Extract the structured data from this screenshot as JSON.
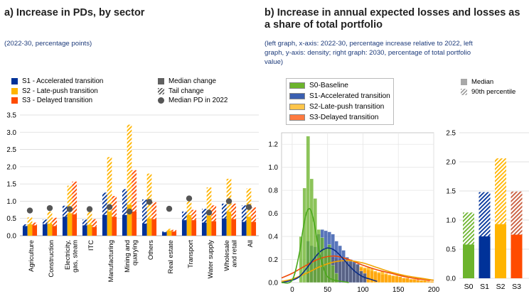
{
  "panel_a": {
    "title": "a) Increase in PDs, by sector",
    "subtitle": "(2022-30, percentage points)",
    "legend": {
      "s1": "S1 - Accelerated transition",
      "s2": "S2 - Late-push transition",
      "s3": "S3 - Delayed transition",
      "median": "Median change",
      "tail": "Tail change",
      "dot": "Median PD in 2022"
    }
  },
  "panel_b": {
    "title_line1": "b) Increase in annual expected losses and losses as",
    "title_line2": "a share of total portfolio",
    "subtitle_line1": "(left graph, x-axis: 2022-30, percentage increase relative to 2022, left",
    "subtitle_line2": "graph, y-axis: density; right graph: 2030, percentage of total portfolio",
    "subtitle_line3": "value)",
    "legend": {
      "s0": "S0-Baseline",
      "s1": "S1-Accelerated transition",
      "s2": "S2-Late-push transition",
      "s3": "S3-Delayed transition",
      "median": "Median",
      "p90": "90th percentile"
    }
  },
  "colors": {
    "s0": "#6cb42c",
    "s1": "#003299",
    "s2": "#ffb400",
    "s3": "#ff4b00",
    "dot": "#555555",
    "grid": "#d9d9d9"
  },
  "chart_data": [
    {
      "type": "bar",
      "categories": [
        "Agriculture",
        "Construction",
        "Electricity, gas, steam",
        "ITC",
        "Manufacturing",
        "Mining and quarying",
        "Others",
        "Real estate",
        "Transport",
        "Water supply",
        "Wholesale and retail",
        "All"
      ],
      "category_lines": [
        [
          "Agriculture"
        ],
        [
          "Construction"
        ],
        [
          "Electricity,",
          "gas, steam"
        ],
        [
          "ITC"
        ],
        [
          "Manufacturing"
        ],
        [
          "Mining and",
          "quarying"
        ],
        [
          "Others"
        ],
        [
          "Real estate"
        ],
        [
          "Transport"
        ],
        [
          "Water supply"
        ],
        [
          "Wholesale",
          "and retail"
        ],
        [
          "All"
        ]
      ],
      "ylim": [
        0,
        3.5
      ],
      "yticks": [
        "0.0",
        "0.5",
        "1.0",
        "1.5",
        "2.0",
        "2.5",
        "3.0",
        "3.5"
      ],
      "series": [
        {
          "name": "S1 - Accelerated transition",
          "median": [
            0.28,
            0.33,
            0.55,
            0.3,
            0.6,
            0.6,
            0.35,
            0.1,
            0.45,
            0.38,
            0.5,
            0.4
          ],
          "tail": [
            0.33,
            0.47,
            0.87,
            0.47,
            1.25,
            1.35,
            1.05,
            0.12,
            0.7,
            0.78,
            0.93,
            0.88
          ]
        },
        {
          "name": "S2 - Late-push transition",
          "median": [
            0.33,
            0.35,
            0.65,
            0.32,
            0.7,
            0.9,
            0.5,
            0.15,
            0.6,
            0.58,
            0.7,
            0.55
          ],
          "tail": [
            0.53,
            0.7,
            1.45,
            0.7,
            2.28,
            3.22,
            1.8,
            0.2,
            1.0,
            1.4,
            1.65,
            1.37
          ]
        },
        {
          "name": "S3 - Delayed transition",
          "median": [
            0.3,
            0.28,
            0.62,
            0.25,
            0.55,
            0.7,
            0.48,
            0.12,
            0.45,
            0.42,
            0.48,
            0.4
          ],
          "tail": [
            0.38,
            0.52,
            1.57,
            0.48,
            1.15,
            1.9,
            0.97,
            0.17,
            0.75,
            0.88,
            0.93,
            0.82
          ]
        }
      ],
      "median_pd_2022": [
        0.73,
        0.8,
        0.77,
        0.77,
        0.83,
        0.7,
        0.98,
        0.78,
        1.08,
        0.67,
        1.0,
        0.83
      ]
    },
    {
      "type": "histogram",
      "xlim": [
        -15,
        200
      ],
      "xticks": [
        0,
        50,
        100,
        150,
        200
      ],
      "ylim": [
        0,
        1.3
      ],
      "yticks": [
        "0.0",
        "0.2",
        "0.4",
        "0.6",
        "0.8",
        "1.0",
        "1.2"
      ],
      "bin_width": 5,
      "series": [
        {
          "name": "S0-Baseline",
          "bin_starts": [
            10,
            15,
            20,
            25,
            30,
            35,
            40,
            45,
            50,
            55,
            60
          ],
          "density": [
            0.4,
            0.82,
            1.27,
            0.9,
            0.73,
            0.46,
            0.39,
            0.3,
            0.33,
            0.15,
            0.08
          ],
          "kde_x": [
            -15,
            0,
            10,
            15,
            20,
            25,
            30,
            35,
            40,
            45,
            50,
            60,
            70,
            80
          ],
          "kde_y": [
            0.0,
            0.02,
            0.25,
            0.45,
            0.6,
            0.64,
            0.55,
            0.38,
            0.22,
            0.12,
            0.05,
            0.02,
            0.01,
            0.0
          ]
        },
        {
          "name": "S1-Accelerated transition",
          "bin_starts": [
            20,
            25,
            30,
            35,
            40,
            45,
            50,
            55,
            60,
            65,
            70,
            75,
            80,
            85,
            90,
            95,
            100
          ],
          "density": [
            0.36,
            0.32,
            0.31,
            0.42,
            0.46,
            0.45,
            0.44,
            0.42,
            0.36,
            0.32,
            0.28,
            0.22,
            0.2,
            0.18,
            0.16,
            0.1,
            0.08
          ],
          "kde_x": [
            -15,
            0,
            10,
            20,
            30,
            40,
            50,
            60,
            70,
            80,
            90,
            100,
            110,
            120
          ],
          "kde_y": [
            0.0,
            0.02,
            0.05,
            0.12,
            0.2,
            0.27,
            0.3,
            0.28,
            0.22,
            0.15,
            0.09,
            0.05,
            0.03,
            0.01
          ]
        },
        {
          "name": "S2-Late-push transition",
          "bin_starts": [
            40,
            45,
            50,
            55,
            60,
            65,
            70,
            75,
            80,
            85,
            90,
            95,
            100,
            105,
            110,
            115,
            120,
            125,
            130,
            135,
            140,
            145,
            150,
            155,
            160,
            165,
            170,
            175,
            180,
            185,
            190,
            195
          ],
          "density": [
            0.22,
            0.2,
            0.21,
            0.2,
            0.2,
            0.19,
            0.18,
            0.18,
            0.18,
            0.17,
            0.16,
            0.14,
            0.13,
            0.13,
            0.12,
            0.1,
            0.09,
            0.1,
            0.08,
            0.07,
            0.06,
            0.06,
            0.05,
            0.04,
            0.04,
            0.03,
            0.03,
            0.02,
            0.02,
            0.02,
            0.01,
            0.01
          ],
          "kde_x": [
            -15,
            0,
            20,
            40,
            60,
            80,
            100,
            120,
            140,
            160,
            180,
            200
          ],
          "kde_y": [
            0.01,
            0.03,
            0.08,
            0.14,
            0.18,
            0.19,
            0.17,
            0.13,
            0.09,
            0.06,
            0.04,
            0.02
          ]
        },
        {
          "name": "S3-Delayed transition",
          "bin_starts": [
            20,
            25,
            30,
            35,
            40,
            45,
            50,
            55,
            60,
            65,
            70,
            75,
            80,
            85,
            90,
            95,
            100,
            105,
            110,
            115,
            120,
            125,
            130,
            135,
            140,
            145,
            150,
            155,
            160,
            165,
            170,
            175,
            180,
            185,
            190,
            195
          ],
          "density": [
            0.18,
            0.2,
            0.2,
            0.21,
            0.22,
            0.23,
            0.23,
            0.22,
            0.21,
            0.2,
            0.19,
            0.18,
            0.17,
            0.16,
            0.15,
            0.13,
            0.12,
            0.11,
            0.1,
            0.09,
            0.08,
            0.07,
            0.07,
            0.06,
            0.06,
            0.05,
            0.05,
            0.04,
            0.04,
            0.03,
            0.03,
            0.03,
            0.02,
            0.02,
            0.02,
            0.01
          ],
          "kde_x": [
            -15,
            0,
            20,
            40,
            60,
            80,
            100,
            120,
            140,
            160,
            180,
            200
          ],
          "kde_y": [
            0.04,
            0.08,
            0.15,
            0.21,
            0.23,
            0.2,
            0.15,
            0.11,
            0.08,
            0.05,
            0.03,
            0.02
          ]
        }
      ]
    },
    {
      "type": "bar",
      "categories": [
        "S0",
        "S1",
        "S2",
        "S3"
      ],
      "ylim": [
        0,
        2.5
      ],
      "yticks": [
        "0.0",
        "0.5",
        "1.0",
        "1.5",
        "2.0",
        "2.5"
      ],
      "median": [
        0.58,
        0.72,
        0.93,
        0.75
      ],
      "p90": [
        1.13,
        1.48,
        2.06,
        1.49
      ]
    }
  ]
}
